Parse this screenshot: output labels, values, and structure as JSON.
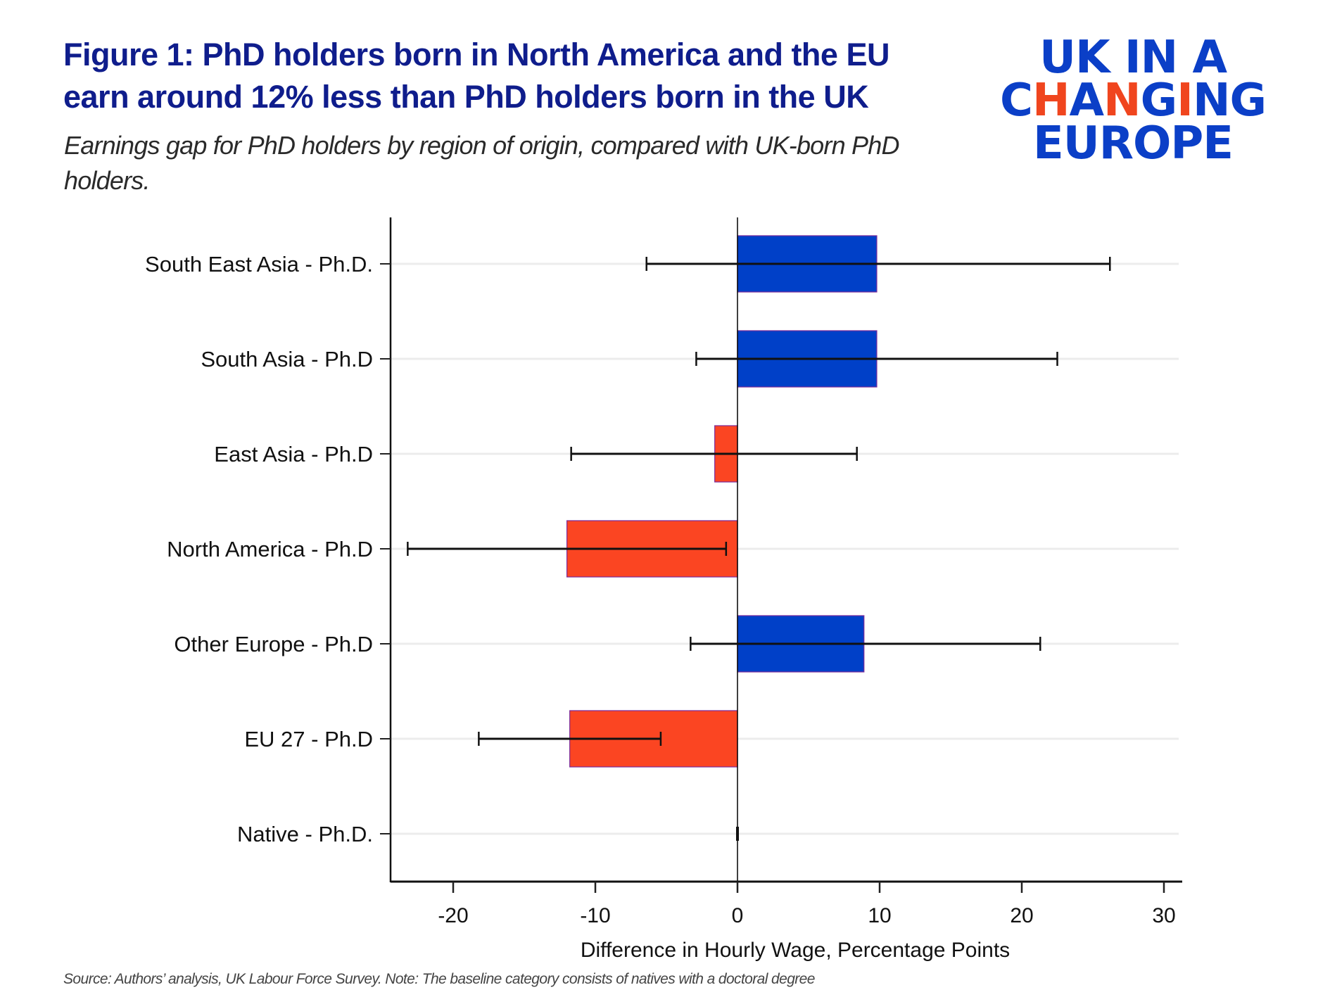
{
  "header": {
    "title_line1": "Figure 1: PhD holders born in North America and the EU",
    "title_line2": "earn around 12% less than PhD holders born in the UK",
    "subtitle_line1": "Earnings gap for PhD holders by region of origin, compared with UK-born PhD",
    "subtitle_line2": "holders."
  },
  "logo": {
    "line1": "UK IN A",
    "line2": "CHANGING",
    "line3": "EUROPE",
    "brand_blue": "#0b3fc7",
    "accent_red": "#f0451e"
  },
  "footer": {
    "source_note": "Source: Authors’ analysis, UK Labour Force Survey. Note: The baseline category consists of natives with a doctoral degree"
  },
  "chart_data": {
    "type": "bar",
    "orientation": "horizontal",
    "title": "Earnings gap for PhD holders by region of origin, compared with UK-born PhD holders.",
    "xlabel": "Difference in Hourly Wage, Percentage Points",
    "ylabel": "",
    "xlim": [
      -24.5,
      31.5
    ],
    "xticks": [
      -20,
      -10,
      0,
      10,
      20,
      30
    ],
    "xtick_labels": [
      "-20",
      "-10",
      "0",
      "10",
      "20",
      "30"
    ],
    "grid": "horizontal",
    "legend": "none",
    "colors": {
      "positive": "#0040c8",
      "negative": "#fb4522",
      "error_bar": "#111111"
    },
    "categories": [
      "South East Asia - Ph.D.",
      "South Asia - Ph.D",
      "East Asia - Ph.D",
      "North America - Ph.D",
      "Other Europe - Ph.D",
      "EU 27 - Ph.D",
      "Native - Ph.D."
    ],
    "values": [
      9.8,
      9.8,
      -1.6,
      -12.0,
      8.9,
      -11.8,
      0
    ],
    "ci_low": [
      -6.4,
      -2.9,
      -11.7,
      -23.2,
      -3.3,
      -18.2,
      0
    ],
    "ci_high": [
      26.2,
      22.5,
      8.4,
      -0.8,
      21.3,
      -5.4,
      0
    ]
  }
}
